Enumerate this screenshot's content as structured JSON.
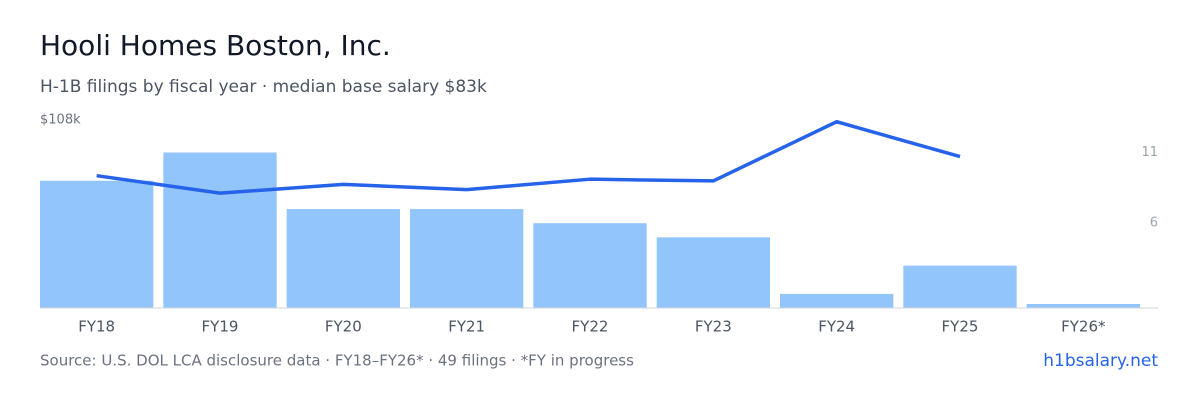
{
  "chart_data": {
    "type": "bar-line",
    "title": "Hooli Homes Boston, Inc.",
    "subtitle": "H-1B filings by fiscal year · median base salary $83k",
    "categories": [
      "FY18",
      "FY19",
      "FY20",
      "FY21",
      "FY22",
      "FY23",
      "FY24",
      "FY25",
      "FY26*"
    ],
    "series": [
      {
        "name": "H-1B filings",
        "type": "bar",
        "axis": "y2",
        "color": "#93c5fd",
        "values": [
          9,
          11,
          7,
          7,
          6,
          5,
          1,
          3,
          0
        ]
      },
      {
        "name": "Median base salary",
        "type": "line",
        "axis": "y",
        "color": "#2563eb",
        "values": [
          76,
          66,
          71,
          68,
          74,
          73,
          107,
          87,
          null
        ]
      }
    ],
    "ylim": [
      0,
      108
    ],
    "yticks": [
      {
        "value": 108,
        "label": "$108k"
      }
    ],
    "y2lim": [
      0,
      13.3
    ],
    "y2ticks": [
      11,
      6
    ],
    "footer": "Source: U.S. DOL LCA disclosure data · FY18–FY26* · 49 filings · *FY in progress",
    "brand": "h1bsalary.net"
  }
}
